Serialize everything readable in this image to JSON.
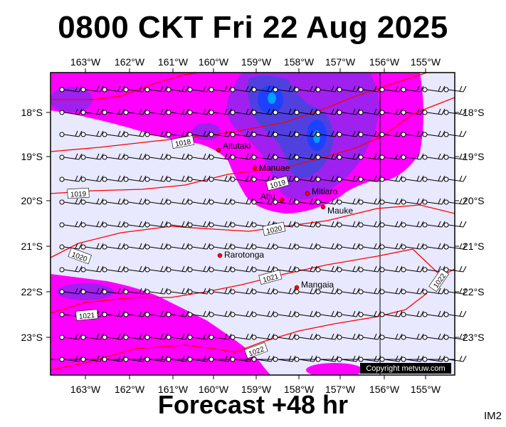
{
  "title": "0800 CKT Fri 22 Aug 2025",
  "footer": "Forecast +48 hr",
  "product_code": "IM2",
  "copyright": "Copyright metvuw.com",
  "lon_labels": [
    "163°W",
    "162°W",
    "161°W",
    "160°W",
    "159°W",
    "158°W",
    "157°W",
    "156°W",
    "155°W"
  ],
  "lat_labels": [
    "18°S",
    "19°S",
    "20°S",
    "21°S",
    "22°S",
    "23°S"
  ],
  "places": [
    "Aitutaki",
    "Manuae",
    "Mitiaro",
    "Atiu",
    "Mauke",
    "Rarotonga",
    "Mangaia"
  ],
  "isobars": [
    "1018",
    "1019",
    "1019",
    "1020",
    "1020",
    "1021",
    "1021",
    "1022",
    "1022"
  ],
  "colors": {
    "background": "#e8e8ff",
    "rain_light": "#ff00ff",
    "rain_medium": "#a020f0",
    "rain_heavy": "#3030e0",
    "isobar": "#ff0000",
    "place_marker": "#ff0000"
  }
}
